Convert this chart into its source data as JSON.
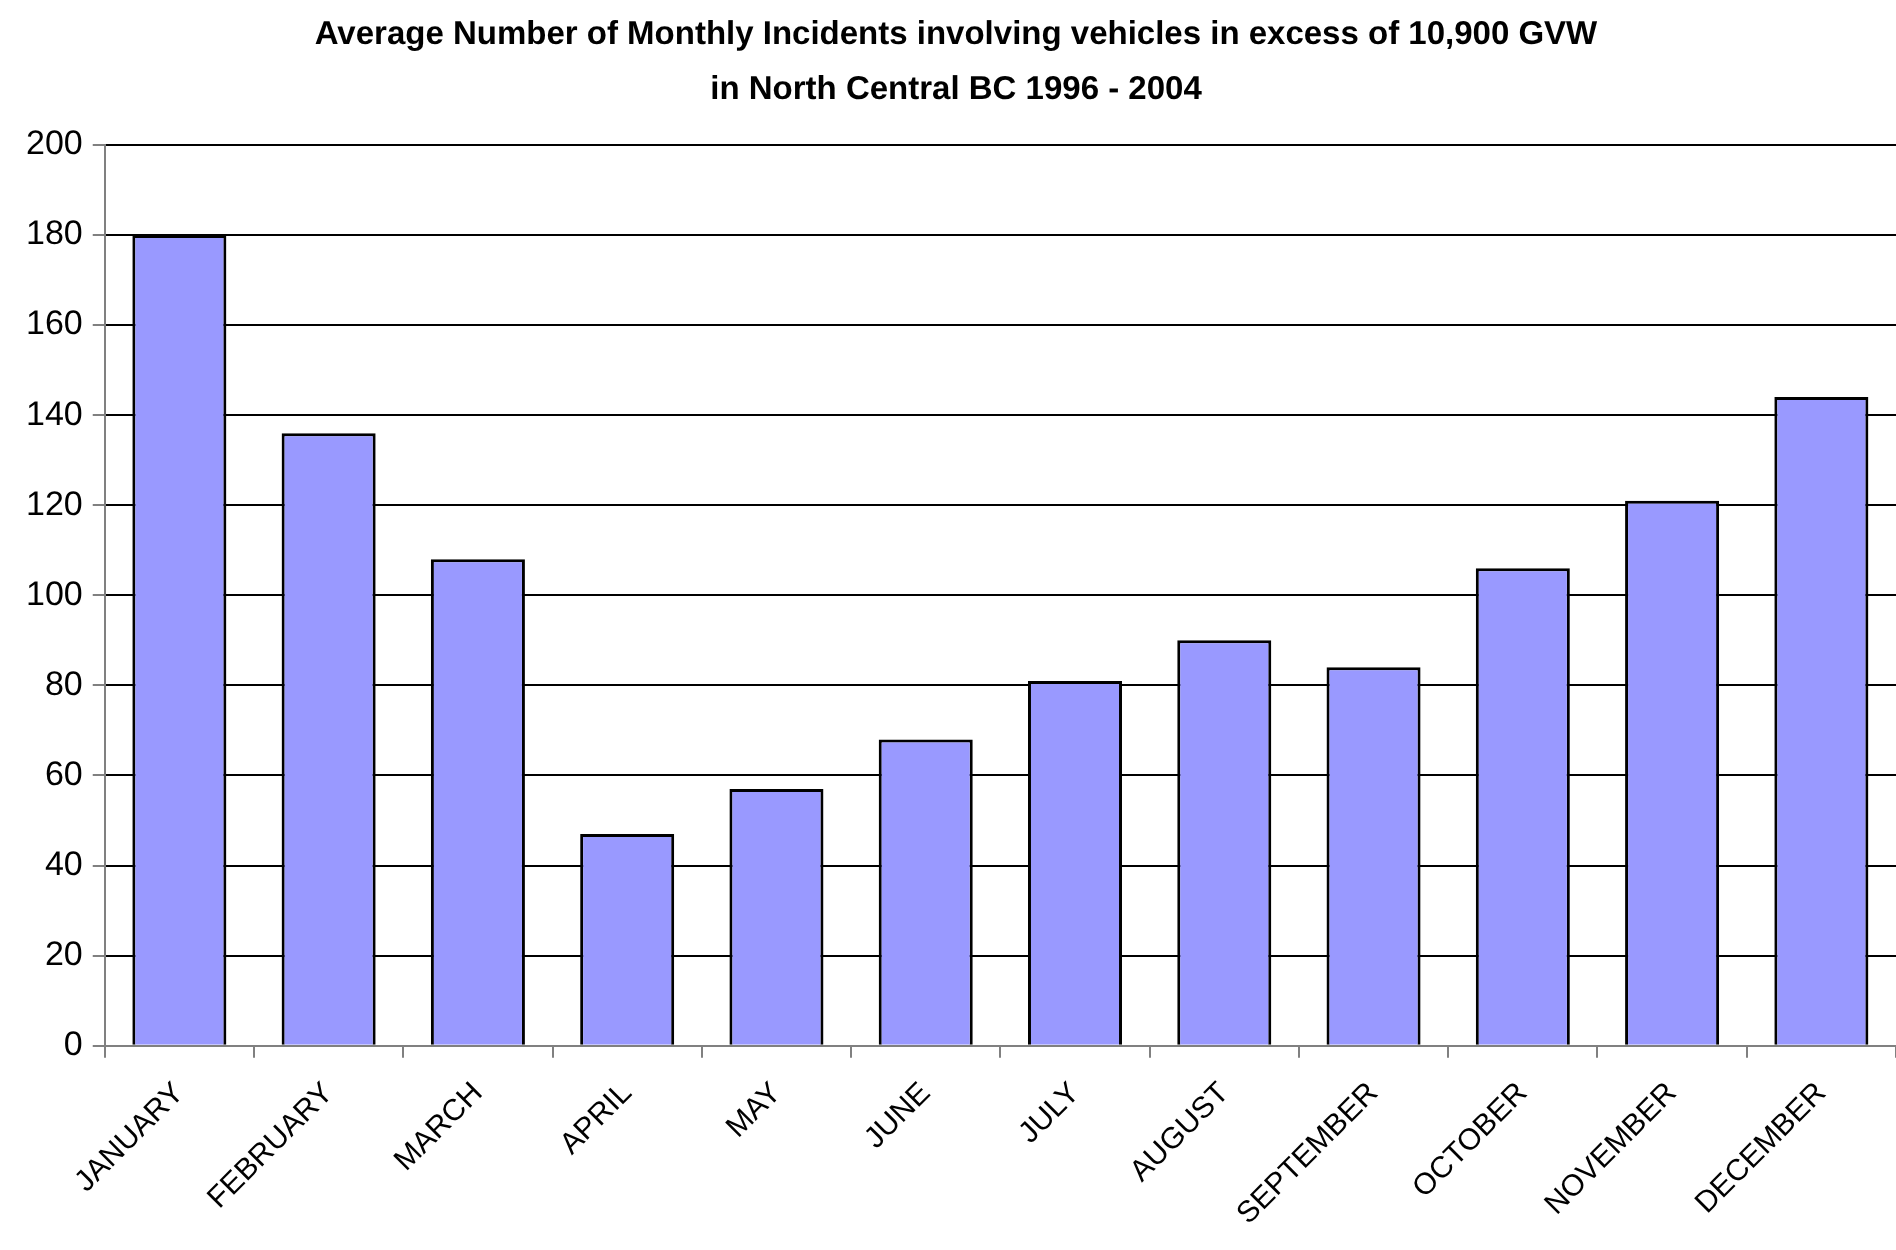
{
  "chart_data": {
    "type": "bar",
    "title": "Average Number of Monthly Incidents involving vehicles in excess of 10,900 GVW\nin North Central BC 1996 - 2004",
    "categories": [
      "JANUARY",
      "FEBRUARY",
      "MARCH",
      "APRIL",
      "MAY",
      "JUNE",
      "JULY",
      "AUGUST",
      "SEPTEMBER",
      "OCTOBER",
      "NOVEMBER",
      "DECEMBER"
    ],
    "values": [
      180,
      136,
      108,
      47,
      57,
      68,
      81,
      90,
      84,
      106,
      121,
      144
    ],
    "color": "#9999ff",
    "ylim": [
      0,
      200
    ],
    "yticks": [
      0,
      20,
      40,
      60,
      80,
      100,
      120,
      140,
      160,
      180,
      200
    ],
    "grid": "y"
  }
}
